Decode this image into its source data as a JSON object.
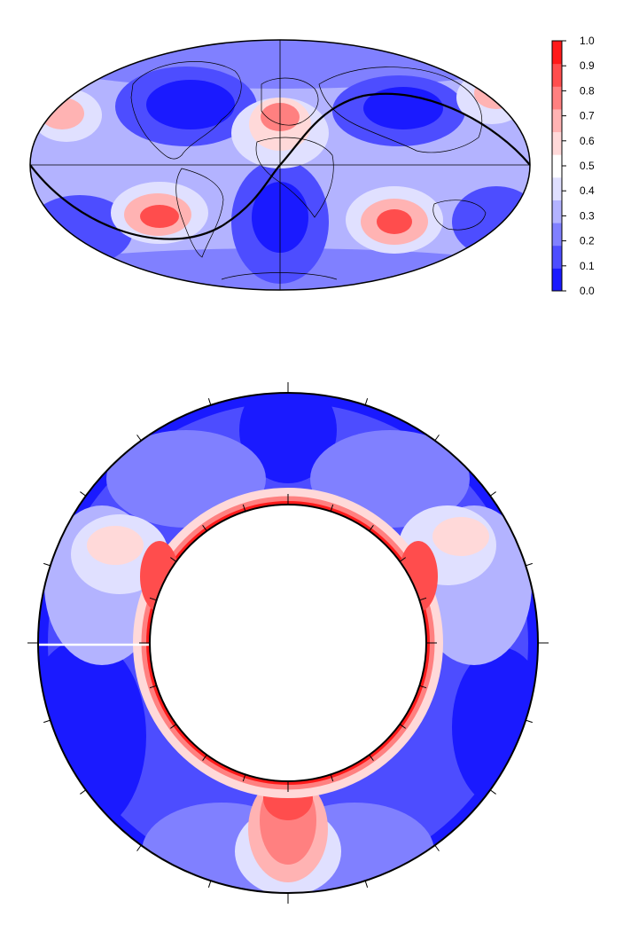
{
  "colorbar": {
    "ticks": [
      "0.0",
      "0.1",
      "0.2",
      "0.3",
      "0.4",
      "0.5",
      "0.6",
      "0.7",
      "0.8",
      "0.9",
      "1.0"
    ],
    "min": 0.0,
    "max": 1.0,
    "palette": [
      "#1a1aff",
      "#4d4dff",
      "#8080ff",
      "#b3b3ff",
      "#e0e0ff",
      "#ffffff",
      "#ffd9d9",
      "#ffb3b3",
      "#ff8080",
      "#ff4d4d",
      "#ff1a1a"
    ]
  },
  "map": {
    "projection": "mollweide",
    "outline_color": "#000000",
    "great_circle": true
  },
  "annulus": {
    "tick_count": 20
  }
}
